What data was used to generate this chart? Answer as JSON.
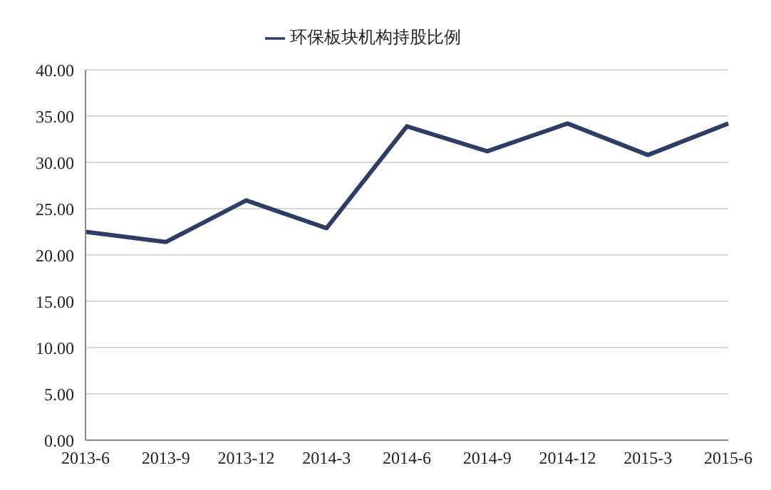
{
  "chart_data": {
    "type": "line",
    "categories": [
      "2013-6",
      "2013-9",
      "2013-12",
      "2014-3",
      "2014-6",
      "2014-9",
      "2014-12",
      "2015-3",
      "2015-6"
    ],
    "series": [
      {
        "name": "环保板块机构持股比例",
        "color": "#2e3d66",
        "values": [
          22.5,
          21.4,
          25.9,
          22.9,
          33.9,
          31.2,
          34.2,
          30.8,
          34.2
        ]
      }
    ],
    "ylim": [
      0,
      40
    ],
    "yticks": [
      {
        "value": 0,
        "label": "0.00"
      },
      {
        "value": 5,
        "label": "5.00"
      },
      {
        "value": 10,
        "label": "10.00"
      },
      {
        "value": 15,
        "label": "15.00"
      },
      {
        "value": 20,
        "label": "20.00"
      },
      {
        "value": 25,
        "label": "25.00"
      },
      {
        "value": 30,
        "label": "30.00"
      },
      {
        "value": 35,
        "label": "35.00"
      },
      {
        "value": 40,
        "label": "40.00"
      }
    ],
    "grid": "y",
    "legend": "top",
    "marker": "none",
    "line_style": "solid"
  }
}
